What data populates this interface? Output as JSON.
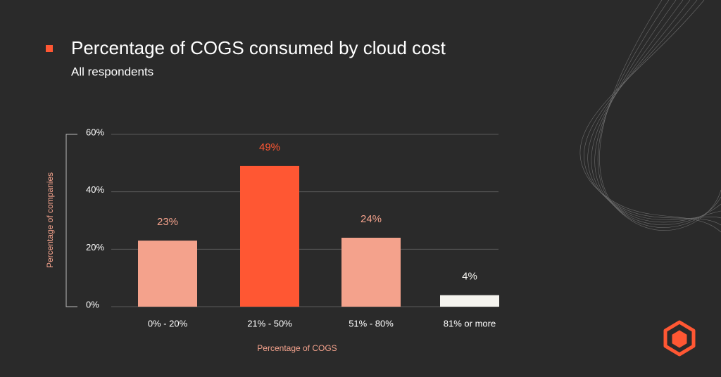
{
  "chart_data": {
    "type": "bar",
    "title": "Percentage of COGS consumed by cloud cost",
    "subtitle": "All respondents",
    "x_label": "Percentage of COGS",
    "y_label": "Percentage of companies",
    "categories": [
      "0% - 20%",
      "21% - 50%",
      "51% - 80%",
      "81% or more"
    ],
    "values": [
      23,
      49,
      24,
      4
    ],
    "value_labels": [
      "23%",
      "49%",
      "24%",
      "4%"
    ],
    "colors": [
      "#f4a28c",
      "#ff5733",
      "#f4a28c",
      "#f5f4ef"
    ],
    "ylim": [
      0,
      60
    ],
    "yticks": [
      {
        "value": 0,
        "label": "0%"
      },
      {
        "value": 20,
        "label": "20%"
      },
      {
        "value": 40,
        "label": "40%"
      },
      {
        "value": 60,
        "label": "60%"
      }
    ],
    "grid": true
  }
}
